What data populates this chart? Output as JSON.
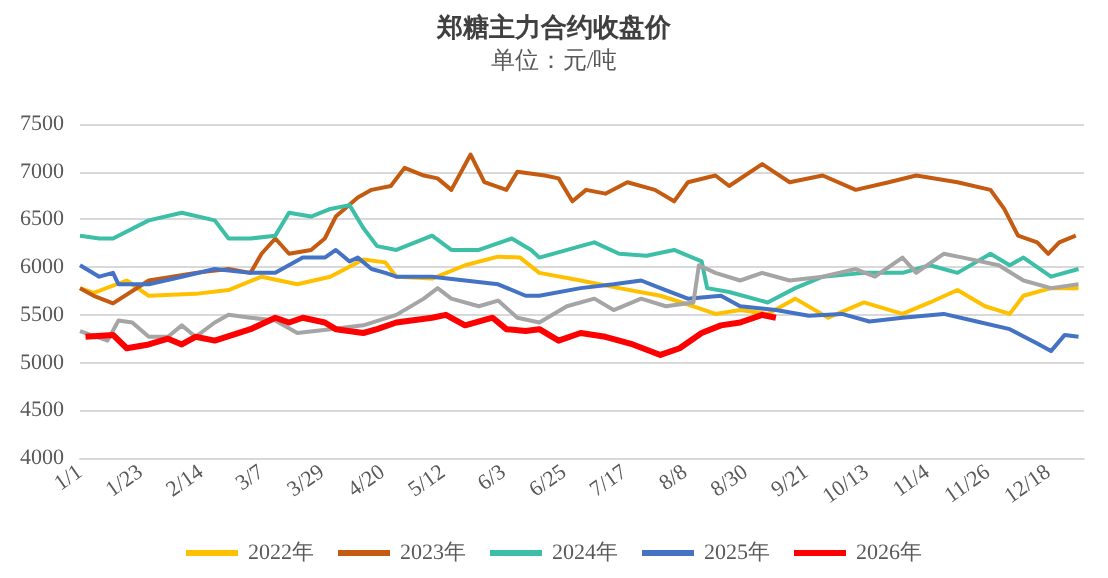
{
  "chart_data": {
    "type": "line",
    "title": "郑糖主力合约收盘价",
    "subtitle": "单位：元/吨",
    "xlim": [
      "--01-01",
      "--12-31"
    ],
    "xticks": [
      {
        "value": "--01-01",
        "label": "1/1"
      },
      {
        "value": "--01-23",
        "label": "1/23"
      },
      {
        "value": "--02-14",
        "label": "2/14"
      },
      {
        "value": "--03-07",
        "label": "3/7"
      },
      {
        "value": "--03-29",
        "label": "3/29"
      },
      {
        "value": "--04-20",
        "label": "4/20"
      },
      {
        "value": "--05-12",
        "label": "5/12"
      },
      {
        "value": "--06-03",
        "label": "6/3"
      },
      {
        "value": "--06-25",
        "label": "6/25"
      },
      {
        "value": "--07-17",
        "label": "7/17"
      },
      {
        "value": "--08-08",
        "label": "8/8"
      },
      {
        "value": "--08-30",
        "label": "8/30"
      },
      {
        "value": "--09-21",
        "label": "9/21"
      },
      {
        "value": "--10-13",
        "label": "10/13"
      },
      {
        "value": "--11-04",
        "label": "11/4"
      },
      {
        "value": "--11-26",
        "label": "11/26"
      },
      {
        "value": "--12-18",
        "label": "12/18"
      }
    ],
    "ylim": [
      4000,
      7500
    ],
    "yticks": [
      4000,
      4500,
      5000,
      5500,
      6000,
      6500,
      7000,
      7500
    ],
    "grid": "y",
    "legend": "bottom",
    "series": [
      {
        "name": "2022年",
        "color": "#ffc000",
        "x": [
          "--01-01",
          "--01-06",
          "--01-18",
          "--01-26",
          "--02-12",
          "--02-24",
          "--03-07",
          "--03-20",
          "--04-01",
          "--04-13",
          "--04-21",
          "--04-25",
          "--05-08",
          "--05-20",
          "--06-01",
          "--06-09",
          "--06-16",
          "--07-01",
          "--07-15",
          "--07-30",
          "--08-11",
          "--08-19",
          "--08-28",
          "--09-07",
          "--09-17",
          "--09-29",
          "--10-12",
          "--10-26",
          "--11-05",
          "--11-15",
          "--11-25",
          "--12-04",
          "--12-09",
          "--12-19",
          "--12-29"
        ],
        "values": [
          5780,
          5730,
          5860,
          5700,
          5720,
          5760,
          5900,
          5820,
          5900,
          6080,
          6050,
          5900,
          5880,
          6020,
          6110,
          6100,
          5940,
          5860,
          5780,
          5700,
          5590,
          5510,
          5550,
          5510,
          5670,
          5470,
          5630,
          5510,
          5630,
          5760,
          5590,
          5510,
          5700,
          5780,
          5780
        ]
      },
      {
        "name": "2023年",
        "color": "#c55a11",
        "x": [
          "--01-01",
          "--01-06",
          "--01-13",
          "--01-26",
          "--02-12",
          "--02-24",
          "--03-03",
          "--03-07",
          "--03-12",
          "--03-17",
          "--03-25",
          "--03-30",
          "--04-03",
          "--04-11",
          "--04-16",
          "--04-23",
          "--04-28",
          "--05-05",
          "--05-10",
          "--05-15",
          "--05-22",
          "--05-27",
          "--06-04",
          "--06-08",
          "--06-18",
          "--06-23",
          "--06-28",
          "--07-03",
          "--07-10",
          "--07-18",
          "--07-28",
          "--08-04",
          "--08-09",
          "--08-19",
          "--08-24",
          "--09-05",
          "--09-15",
          "--09-27",
          "--10-09",
          "--10-21",
          "--10-31",
          "--11-15",
          "--11-27",
          "--12-02",
          "--12-07",
          "--12-14",
          "--12-18",
          "--12-22",
          "--12-28"
        ],
        "values": [
          5780,
          5700,
          5620,
          5860,
          5940,
          5980,
          5940,
          6140,
          6300,
          6140,
          6180,
          6300,
          6530,
          6730,
          6810,
          6850,
          7040,
          6960,
          6930,
          6810,
          7180,
          6890,
          6810,
          7000,
          6960,
          6930,
          6690,
          6810,
          6770,
          6890,
          6810,
          6690,
          6890,
          6960,
          6850,
          7080,
          6890,
          6960,
          6810,
          6890,
          6960,
          6890,
          6810,
          6610,
          6330,
          6260,
          6140,
          6260,
          6330
        ]
      },
      {
        "name": "2024年",
        "color": "#3cbfa6",
        "x": [
          "--01-01",
          "--01-08",
          "--01-13",
          "--01-26",
          "--02-07",
          "--02-19",
          "--02-24",
          "--03-03",
          "--03-12",
          "--03-17",
          "--03-25",
          "--04-01",
          "--04-08",
          "--04-13",
          "--04-18",
          "--04-25",
          "--05-08",
          "--05-15",
          "--05-25",
          "--06-06",
          "--06-13",
          "--06-16",
          "--07-01",
          "--07-06",
          "--07-15",
          "--07-25",
          "--08-04",
          "--08-14",
          "--08-16",
          "--08-24",
          "--09-07",
          "--09-17",
          "--09-27",
          "--10-12",
          "--10-26",
          "--11-05",
          "--11-15",
          "--11-27",
          "--12-04",
          "--12-09",
          "--12-19",
          "--12-29"
        ],
        "values": [
          6330,
          6300,
          6300,
          6490,
          6570,
          6490,
          6300,
          6300,
          6330,
          6570,
          6530,
          6610,
          6650,
          6410,
          6220,
          6180,
          6330,
          6180,
          6180,
          6300,
          6180,
          6100,
          6220,
          6260,
          6140,
          6120,
          6180,
          6060,
          5780,
          5740,
          5630,
          5780,
          5900,
          5940,
          5940,
          6020,
          5940,
          6140,
          6020,
          6100,
          5900,
          5980
        ]
      },
      {
        "name": "2025年",
        "color": "#4472c4",
        "x": [
          "--01-01",
          "--01-08",
          "--01-13",
          "--01-15",
          "--01-26",
          "--02-07",
          "--02-19",
          "--03-03",
          "--03-12",
          "--03-22",
          "--03-30",
          "--04-03",
          "--04-08",
          "--04-11",
          "--04-16",
          "--04-21",
          "--04-25",
          "--05-08",
          "--05-20",
          "--06-01",
          "--06-11",
          "--06-16",
          "--07-01",
          "--07-13",
          "--07-23",
          "--07-30",
          "--08-09",
          "--08-21",
          "--08-28",
          "--09-10",
          "--09-22",
          "--10-04",
          "--10-14",
          "--10-26",
          "--11-10",
          "--11-22",
          "--12-04",
          "--12-14",
          "--12-19",
          "--12-24",
          "--12-29"
        ],
        "values": [
          6020,
          5900,
          5940,
          5820,
          5820,
          5900,
          5980,
          5940,
          5940,
          6100,
          6100,
          6180,
          6060,
          6100,
          5980,
          5940,
          5900,
          5900,
          5860,
          5820,
          5700,
          5700,
          5780,
          5820,
          5860,
          5780,
          5670,
          5700,
          5590,
          5550,
          5490,
          5510,
          5430,
          5470,
          5510,
          5430,
          5350,
          5200,
          5120,
          5290,
          5270
        ]
      },
      {
        "color": "#a5a5a5",
        "x": [
          "--01-01",
          "--01-11",
          "--01-15",
          "--01-20",
          "--01-26",
          "--02-02",
          "--02-07",
          "--02-12",
          "--02-19",
          "--02-24",
          "--03-03",
          "--03-12",
          "--03-20",
          "--04-01",
          "--04-13",
          "--04-25",
          "--05-05",
          "--05-10",
          "--05-15",
          "--05-25",
          "--06-01",
          "--06-08",
          "--06-16",
          "--06-26",
          "--07-06",
          "--07-13",
          "--07-23",
          "--08-01",
          "--08-11",
          "--08-13",
          "--08-19",
          "--08-28",
          "--09-05",
          "--09-15",
          "--09-27",
          "--10-09",
          "--10-16",
          "--10-26",
          "--10-31",
          "--11-10",
          "--11-17",
          "--11-30",
          "--12-09",
          "--12-19",
          "--12-29"
        ],
        "values": [
          5330,
          5230,
          5440,
          5420,
          5270,
          5270,
          5390,
          5270,
          5420,
          5500,
          5470,
          5440,
          5310,
          5350,
          5390,
          5500,
          5670,
          5780,
          5670,
          5590,
          5650,
          5470,
          5420,
          5590,
          5670,
          5550,
          5670,
          5590,
          5630,
          6020,
          5940,
          5860,
          5940,
          5860,
          5900,
          5980,
          5900,
          6100,
          5940,
          6140,
          6100,
          6020,
          5860,
          5780,
          5820
        ]
      },
      {
        "name": "2026年",
        "color": "#ff0000",
        "x": [
          "--01-03",
          "--01-13",
          "--01-18",
          "--01-26",
          "--02-02",
          "--02-07",
          "--02-12",
          "--02-19",
          "--03-03",
          "--03-12",
          "--03-17",
          "--03-22",
          "--03-30",
          "--04-03",
          "--04-13",
          "--04-18",
          "--04-25",
          "--05-08",
          "--05-13",
          "--05-20",
          "--05-30",
          "--06-04",
          "--06-11",
          "--06-16",
          "--06-23",
          "--07-01",
          "--07-10",
          "--07-20",
          "--07-30",
          "--08-06",
          "--08-14",
          "--08-21",
          "--08-28",
          "--09-05",
          "--09-10"
        ],
        "values": [
          5270,
          5290,
          5150,
          5190,
          5250,
          5190,
          5270,
          5230,
          5350,
          5470,
          5420,
          5470,
          5420,
          5350,
          5310,
          5350,
          5420,
          5470,
          5500,
          5390,
          5470,
          5350,
          5330,
          5350,
          5230,
          5310,
          5270,
          5190,
          5080,
          5150,
          5310,
          5390,
          5420,
          5500,
          5470
        ]
      }
    ]
  }
}
